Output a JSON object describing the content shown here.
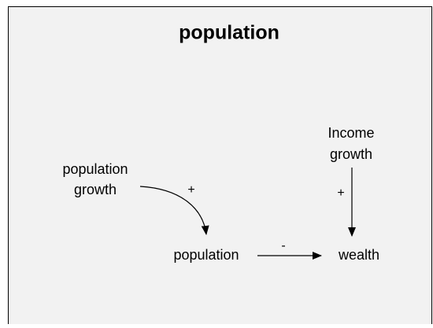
{
  "title": "population",
  "nodes": [
    {
      "lines": [
        "population",
        "growth"
      ]
    },
    {
      "lines": [
        "Income",
        "growth"
      ]
    },
    {
      "lines": [
        "population"
      ]
    },
    {
      "lines": [
        "wealth"
      ]
    }
  ],
  "edges": [
    {
      "from": "population growth",
      "to": "population",
      "sign": "+"
    },
    {
      "from": "Income growth",
      "to": "wealth",
      "sign": "+"
    },
    {
      "from": "population",
      "to": "wealth",
      "sign": "-"
    }
  ]
}
